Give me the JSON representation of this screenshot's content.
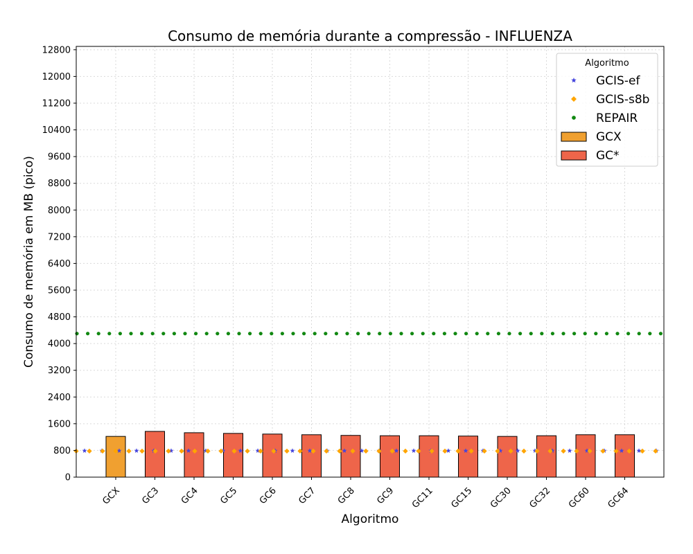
{
  "chart_data": {
    "type": "bar",
    "title": "Consumo de memória durante a compressão -  INFLUENZA",
    "xlabel": "Algoritmo",
    "ylabel": "Consumo de memória em MB (pico)",
    "ylim": [
      0,
      12900
    ],
    "yticks": [
      0,
      800,
      1600,
      2400,
      3200,
      4000,
      4800,
      5600,
      6400,
      7200,
      8000,
      8800,
      9600,
      10400,
      11200,
      12000,
      12800
    ],
    "categories": [
      "GCX",
      "GC3",
      "GC4",
      "GC5",
      "GC6",
      "GC7",
      "GC8",
      "GC9",
      "GC11",
      "GC15",
      "GC30",
      "GC32",
      "GC60",
      "GC64"
    ],
    "grid": true,
    "legend_title": "Algoritmo",
    "legend_position": "top-right",
    "bar_series": [
      {
        "name": "GCX",
        "color": "#f0a030",
        "values": [
          1220,
          null,
          null,
          null,
          null,
          null,
          null,
          null,
          null,
          null,
          null,
          null,
          null,
          null
        ]
      },
      {
        "name": "GC*",
        "color": "#ee654a",
        "values": [
          null,
          1370,
          1330,
          1310,
          1290,
          1270,
          1250,
          1240,
          1240,
          1230,
          1220,
          1240,
          1270,
          1270
        ]
      }
    ],
    "line_series": [
      {
        "name": "GCIS-ef",
        "marker": "star",
        "color": "#4444dd",
        "value": 790
      },
      {
        "name": "GCIS-s8b",
        "marker": "diamond",
        "color": "#ffa500",
        "value": 780
      },
      {
        "name": "REPAIR",
        "marker": "circle",
        "color": "#118811",
        "value": 4300
      }
    ]
  }
}
